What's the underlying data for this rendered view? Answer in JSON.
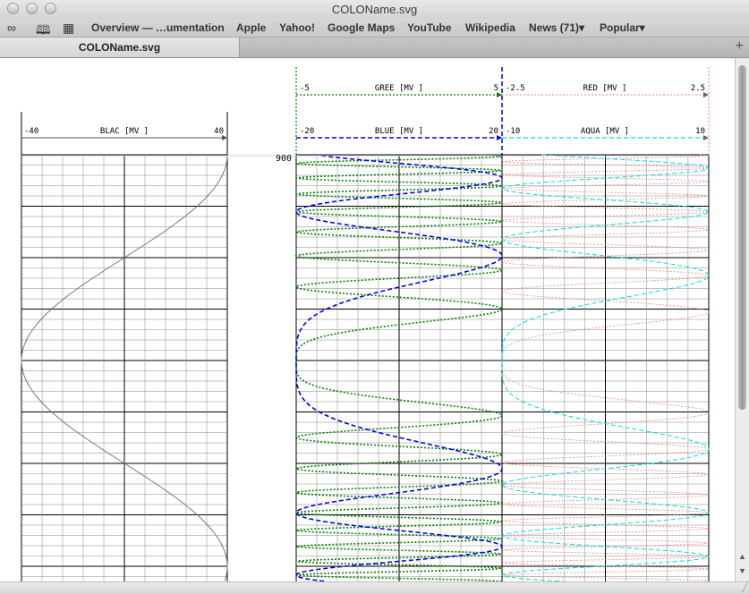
{
  "window": {
    "title": "COLOName.svg"
  },
  "bookmarks_bar": {
    "items": [
      "Overview — …umentation",
      "Apple",
      "Yahoo!",
      "Google Maps",
      "YouTube",
      "Wikipedia",
      "News (71)▾",
      "Popular▾"
    ]
  },
  "tabs": [
    {
      "label": "COLOName.svg"
    }
  ],
  "icons": [
    "close-icon",
    "minimize-icon",
    "zoom-icon",
    "reading-list-icon",
    "bookmarks-book-icon",
    "top-sites-grid-icon",
    "new-tab-plus-icon",
    "scroll-up-arrow-icon",
    "scroll-down-arrow-icon",
    "resize-grip-icon"
  ],
  "log": {
    "depth_label": "900",
    "tracks": [
      {
        "name": "blac-track",
        "curves": [
          {
            "label": "BLAC [MV ]",
            "min_label": "-40",
            "max_label": "40",
            "color": "#777777",
            "style": "solid",
            "kind": "sine",
            "period_depth": 100
          }
        ]
      },
      {
        "name": "blue-green-track",
        "curves": [
          {
            "label": "GREE [MV ]",
            "min_label": "-5",
            "max_label": "5",
            "color": "#008000",
            "style": "dotted",
            "kind": "chirp"
          },
          {
            "label": "BLUE [MV ]",
            "min_label": "-20",
            "max_label": "20",
            "color": "#0000ee",
            "style": "dashed",
            "kind": "chirp"
          }
        ]
      },
      {
        "name": "red-aqua-track",
        "curves": [
          {
            "label": "RED [MV ]",
            "min_label": "-2.5",
            "max_label": "2.5",
            "color": "#f08080",
            "style": "dotted",
            "kind": "chirp"
          },
          {
            "label": "AQUA [MV ]",
            "min_label": "-10",
            "max_label": "10",
            "color": "#00e0e0",
            "style": "dashed",
            "kind": "chirp"
          }
        ]
      }
    ]
  },
  "colors": {
    "grid_minor": "#888888",
    "grid_major": "#000000",
    "blac": "#777777",
    "green": "#008000",
    "blue": "#0000ee",
    "red": "#f08080",
    "aqua": "#00e0e0"
  }
}
